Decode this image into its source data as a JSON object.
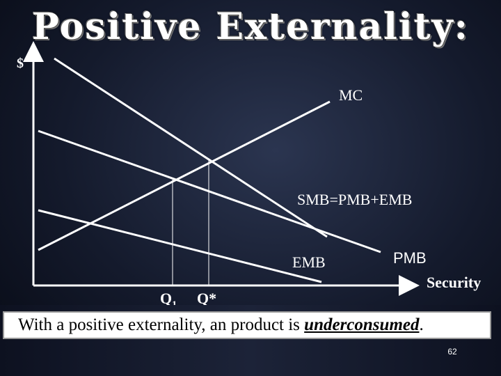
{
  "slide": {
    "title": "Positive Externality:",
    "y_axis_label": "$",
    "x_axis_label": "Security",
    "curves": {
      "mc": "MC",
      "smb": "SMB=PMB+EMB",
      "emb": "EMB",
      "pmb": "PMB"
    },
    "quantities": {
      "q1_base": "Q",
      "q1_sub": "1",
      "q_star": "Q*"
    },
    "caption": {
      "prefix": "With a positive externality, an product is ",
      "emphasis": "underconsumed",
      "suffix": "."
    },
    "page_number": "62"
  }
}
